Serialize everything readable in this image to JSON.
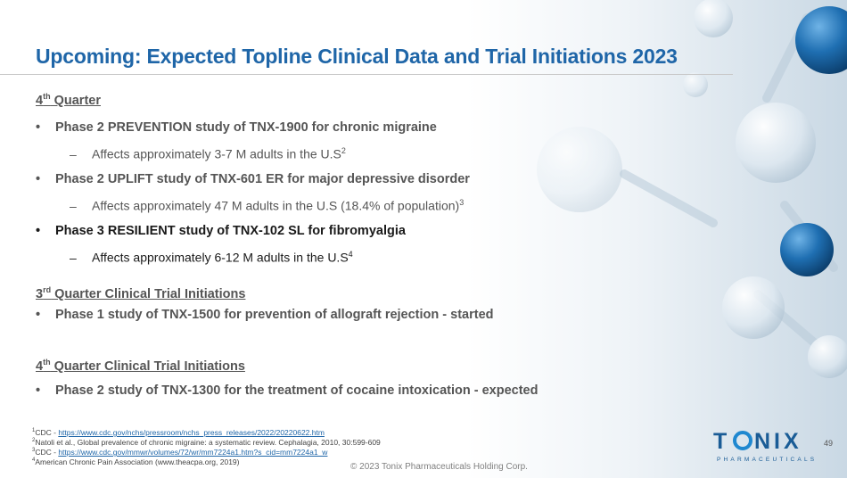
{
  "title": "Upcoming: Expected Topline Clinical Data and Trial Initiations 2023",
  "section1": {
    "heading_num": "4",
    "heading_sup": "th",
    "heading_rest": " Quarter",
    "bullets": [
      {
        "text": "Phase 2 PREVENTION study of TNX-1900 for chronic migraine",
        "sub": "Affects approximately 3-7 M adults in the U.S",
        "sub_sup": "2"
      },
      {
        "text": "Phase 2 UPLIFT study of TNX-601 ER for major depressive disorder",
        "sub": "Affects approximately 47 M adults in the U.S (18.4% of population)",
        "sub_sup": "3"
      },
      {
        "text": "Phase 3 RESILIENT study of TNX-102 SL for fibromyalgia",
        "sub": "Affects approximately 6-12 M adults in the U.S",
        "sub_sup": "4"
      }
    ]
  },
  "section2": {
    "heading_num": "3",
    "heading_sup": "rd",
    "heading_rest": " Quarter Clinical Trial Initiations",
    "bullet": "Phase 1 study of TNX-1500 for prevention of allograft rejection - started"
  },
  "section3": {
    "heading_num": "4",
    "heading_sup": "th",
    "heading_rest": " Quarter Clinical Trial Initiations",
    "bullet": "Phase 2 study of TNX-1300 for the treatment of cocaine intoxication - expected"
  },
  "bullet_symbol": "•",
  "dash_symbol": "–",
  "footnotes": [
    {
      "num": "1",
      "prefix": "CDC - ",
      "link": "https://www.cdc.gov/nchs/pressroom/nchs_press_releases/2022/20220622.htm"
    },
    {
      "num": "2",
      "prefix": "Natoli et al., Global prevalence of chronic migraine: a systematic review. Cephalagia, 2010, 30:599-609",
      "link": ""
    },
    {
      "num": "3",
      "prefix": "CDC - ",
      "link": "https://www.cdc.gov/mmwr/volumes/72/wr/mm7224a1.htm?s_cid=mm7224a1_w"
    },
    {
      "num": "4",
      "prefix": "American Chronic Pain Association (www.theacpa.org, 2019)",
      "link": ""
    }
  ],
  "copyright": "© 2023 Tonix Pharmaceuticals Holding Corp.",
  "page_number": "49",
  "logo": {
    "brand": "TONIX",
    "tagline": "PHARMACEUTICALS",
    "primary_color": "#1a5c96",
    "accent_color": "#1f88d0"
  },
  "colors": {
    "title": "#1f66a8",
    "body": "#555555",
    "dark": "#1a1a1a"
  }
}
